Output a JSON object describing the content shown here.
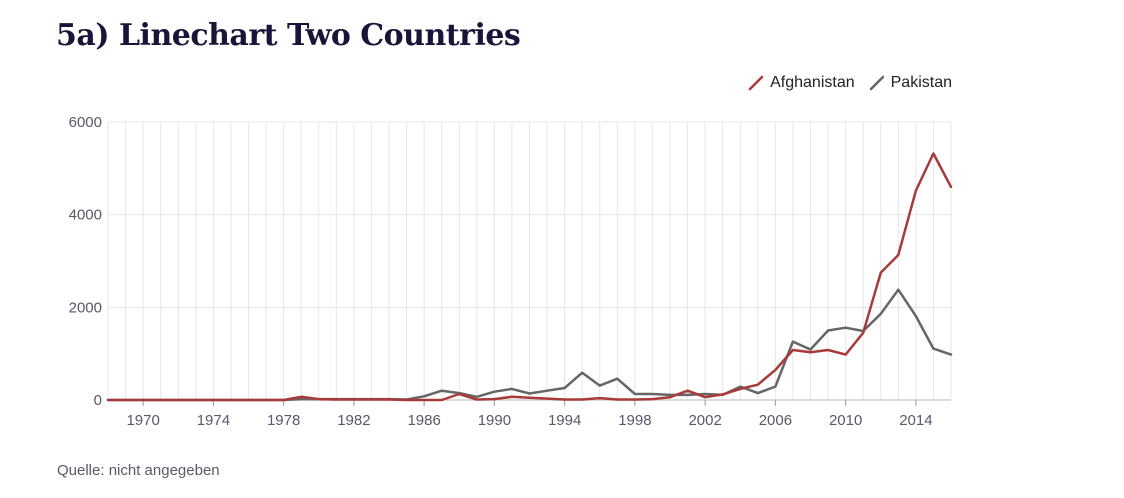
{
  "title": "5a) Linechart Two Countries",
  "source": "Quelle: nicht angegeben",
  "colors": {
    "afghanistan": "#a83a3a",
    "pakistan": "#666666",
    "grid": "#e6e6e6",
    "axis": "#cfcfcf"
  },
  "chart_data": {
    "type": "line",
    "title": "5a) Linechart Two Countries",
    "xlabel": "",
    "ylabel": "",
    "xlim": [
      1968,
      2016
    ],
    "ylim": [
      0,
      6000
    ],
    "grid": true,
    "legend_position": "top-right",
    "y_ticks": [
      0,
      2000,
      4000,
      6000
    ],
    "y_tick_labels": [
      "0",
      "2000",
      "4000",
      "6000"
    ],
    "x_ticks": [
      1970,
      1974,
      1978,
      1982,
      1986,
      1990,
      1994,
      1998,
      2002,
      2006,
      2010,
      2014
    ],
    "x_tick_labels": [
      "1970",
      "1974",
      "1978",
      "1982",
      "1986",
      "1990",
      "1994",
      "1998",
      "2002",
      "2006",
      "2010",
      "2014"
    ],
    "x": [
      1968,
      1969,
      1970,
      1971,
      1972,
      1973,
      1974,
      1975,
      1976,
      1977,
      1978,
      1979,
      1980,
      1981,
      1982,
      1983,
      1984,
      1985,
      1986,
      1987,
      1988,
      1989,
      1990,
      1991,
      1992,
      1993,
      1994,
      1995,
      1996,
      1997,
      1998,
      1999,
      2000,
      2001,
      2002,
      2003,
      2004,
      2005,
      2006,
      2007,
      2008,
      2009,
      2010,
      2011,
      2012,
      2013,
      2014,
      2015,
      2016
    ],
    "series": [
      {
        "name": "Afghanistan",
        "values": [
          0,
          0,
          0,
          0,
          0,
          0,
          0,
          0,
          0,
          0,
          0,
          70,
          20,
          10,
          10,
          10,
          10,
          0,
          0,
          0,
          130,
          10,
          20,
          70,
          50,
          30,
          10,
          10,
          40,
          10,
          10,
          20,
          60,
          200,
          60,
          120,
          240,
          330,
          650,
          1080,
          1030,
          1080,
          980,
          1450,
          2750,
          3130,
          4520,
          5320,
          4600
        ]
      },
      {
        "name": "Pakistan",
        "values": [
          0,
          0,
          0,
          0,
          0,
          0,
          0,
          0,
          0,
          0,
          0,
          20,
          20,
          20,
          20,
          20,
          20,
          10,
          80,
          200,
          150,
          70,
          180,
          240,
          140,
          200,
          260,
          590,
          310,
          460,
          130,
          130,
          110,
          110,
          130,
          110,
          290,
          150,
          290,
          1260,
          1090,
          1500,
          1560,
          1490,
          1860,
          2380,
          1810,
          1110,
          980
        ]
      }
    ]
  }
}
